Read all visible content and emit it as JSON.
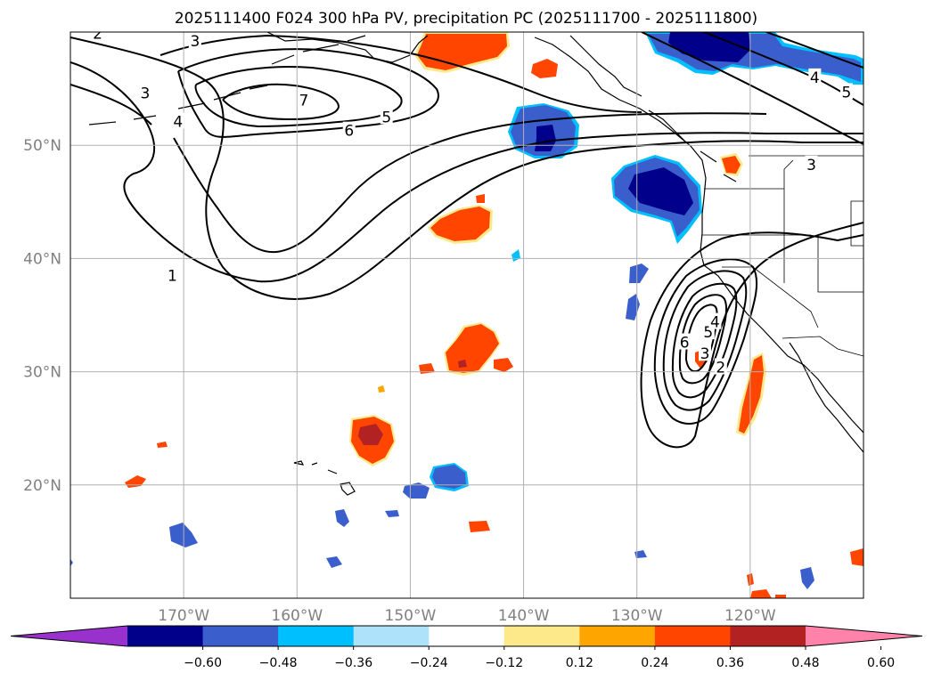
{
  "title": "2025111400 F024 300 hPa PV, precipitation PC (2025111700 - 2025111800)",
  "map": {
    "lon_range": [
      -180,
      -110
    ],
    "lat_range": [
      10,
      60
    ],
    "lat_ticks": [
      {
        "lat": 50,
        "label": "50°N"
      },
      {
        "lat": 40,
        "label": "40°N"
      },
      {
        "lat": 30,
        "label": "30°N"
      },
      {
        "lat": 20,
        "label": "20°N"
      }
    ],
    "lon_ticks": [
      {
        "lon": -170,
        "label": "170°W"
      },
      {
        "lon": -160,
        "label": "160°W"
      },
      {
        "lon": -150,
        "label": "150°W"
      },
      {
        "lon": -140,
        "label": "140°W"
      },
      {
        "lon": -130,
        "label": "130°W"
      },
      {
        "lon": -120,
        "label": "120°W"
      }
    ],
    "pv_contour_labels": [
      {
        "value": "2",
        "lon": -177.6,
        "lat": 59.9
      },
      {
        "value": "3",
        "lon": -169.0,
        "lat": 59.2
      },
      {
        "value": "3",
        "lon": -173.4,
        "lat": 54.6
      },
      {
        "value": "4",
        "lon": -170.5,
        "lat": 52.1
      },
      {
        "value": "7",
        "lon": -159.4,
        "lat": 54.0
      },
      {
        "value": "6",
        "lon": -155.4,
        "lat": 51.3
      },
      {
        "value": "5",
        "lon": -152.1,
        "lat": 52.5
      },
      {
        "value": "1",
        "lon": -171.0,
        "lat": 38.5
      },
      {
        "value": "4",
        "lon": -114.3,
        "lat": 56.0
      },
      {
        "value": "5",
        "lon": -111.5,
        "lat": 54.7
      },
      {
        "value": "3",
        "lon": -114.6,
        "lat": 48.3
      },
      {
        "value": "6",
        "lon": -125.8,
        "lat": 32.6
      },
      {
        "value": "5",
        "lon": -123.7,
        "lat": 33.5
      },
      {
        "value": "4",
        "lon": -123.1,
        "lat": 34.4
      },
      {
        "value": "3",
        "lon": -124.0,
        "lat": 31.6
      },
      {
        "value": "2",
        "lon": -122.6,
        "lat": 30.4
      }
    ]
  },
  "colorbar": {
    "ticks": [
      "−0.60",
      "−0.48",
      "−0.36",
      "−0.24",
      "−0.12",
      "0.12",
      "0.24",
      "0.36",
      "0.48",
      "0.60"
    ],
    "colors": [
      "#9932cc",
      "#00008b",
      "#3a5fcd",
      "#00bfff",
      "#ade2fa",
      "#ffffff",
      "#fde98a",
      "#ffa500",
      "#ff4500",
      "#b22222",
      "#ff82ab"
    ]
  }
}
